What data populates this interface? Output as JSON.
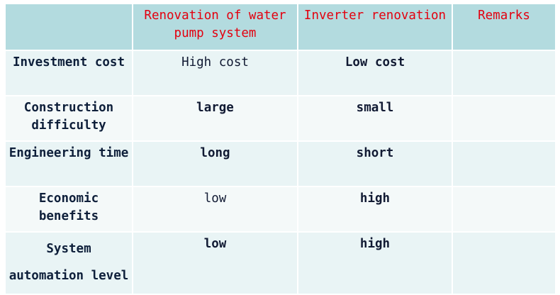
{
  "table": {
    "headers": [
      "",
      "Renovation of water pump system",
      "Inverter renovation",
      "Remarks"
    ],
    "rows": [
      {
        "label": "Investment cost",
        "water_pump": "High cost",
        "inverter": "Low cost",
        "remarks": ""
      },
      {
        "label": "Construction difficulty",
        "water_pump": "large",
        "inverter": "small",
        "remarks": ""
      },
      {
        "label": "Engineering time",
        "water_pump": "long",
        "inverter": "short",
        "remarks": ""
      },
      {
        "label": "Economic benefits",
        "water_pump": "low",
        "inverter": "high",
        "remarks": ""
      },
      {
        "label": "System automation level",
        "water_pump": "low",
        "inverter": "high",
        "remarks": ""
      }
    ]
  },
  "colors": {
    "header_bg": "#b3dbdf",
    "header_text": "#e3000f",
    "row_bg_odd": "#e9f4f5",
    "row_bg_even": "#f4f9f9",
    "body_text": "#111a33"
  }
}
